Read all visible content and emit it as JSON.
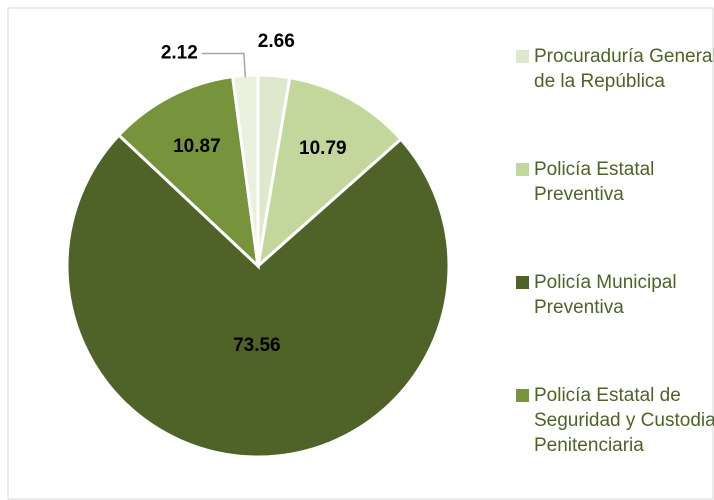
{
  "chart_data": {
    "type": "pie",
    "categories": [
      "Procuraduría General de la República",
      "Policía Estatal Preventiva",
      "Policía Municipal Preventiva",
      "Policía Estatal de Seguridad y Custodia Penitenciaria",
      null
    ],
    "values": [
      2.66,
      10.79,
      73.56,
      10.87,
      2.12
    ],
    "colors": [
      "#dde8cc",
      "#c3d69b",
      "#4f6228",
      "#77933c",
      "#ebf1de"
    ],
    "legend": "right"
  }
}
